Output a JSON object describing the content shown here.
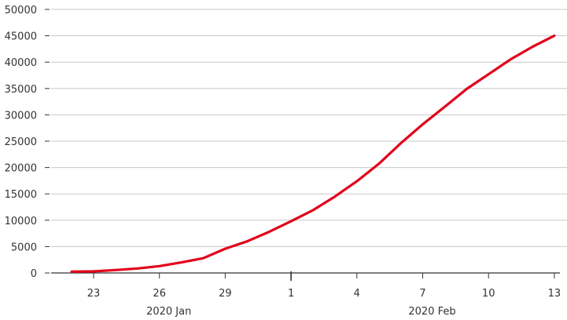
{
  "colors": {
    "line": "#e2001a",
    "grid": "#c8c8c8",
    "axis": "#333333",
    "text": "#333333"
  },
  "chart_data": {
    "type": "line",
    "title": "",
    "xlabel": "",
    "ylabel": "",
    "grid": true,
    "legend": "none",
    "ylim": [
      0,
      50000
    ],
    "xlim": [
      "2020-01-21",
      "2020-02-14"
    ],
    "y_ticks": [
      "0",
      "5000",
      "10000",
      "15000",
      "20000",
      "25000",
      "30000",
      "35000",
      "40000",
      "45000",
      "50000"
    ],
    "x_ticks": [
      {
        "date": "2020-01-23",
        "label": "23"
      },
      {
        "date": "2020-01-26",
        "label": "26"
      },
      {
        "date": "2020-01-29",
        "label": "29"
      },
      {
        "date": "2020-02-01",
        "label": "1"
      },
      {
        "date": "2020-02-04",
        "label": "4"
      },
      {
        "date": "2020-02-07",
        "label": "7"
      },
      {
        "date": "2020-02-10",
        "label": "10"
      },
      {
        "date": "2020-02-13",
        "label": "13"
      }
    ],
    "month_labels": [
      {
        "date": "2020-01-26",
        "label": "2020 Jan"
      },
      {
        "date": "2020-02-07",
        "label": "2020 Feb"
      }
    ],
    "series": [
      {
        "points": [
          {
            "x": "2020-01-22",
            "y": 250
          },
          {
            "x": "2020-01-23",
            "y": 300
          },
          {
            "x": "2020-01-24",
            "y": 550
          },
          {
            "x": "2020-01-25",
            "y": 850
          },
          {
            "x": "2020-01-26",
            "y": 1300
          },
          {
            "x": "2020-01-27",
            "y": 2000
          },
          {
            "x": "2020-01-28",
            "y": 2800
          },
          {
            "x": "2020-01-29",
            "y": 4600
          },
          {
            "x": "2020-01-30",
            "y": 6000
          },
          {
            "x": "2020-01-31",
            "y": 7800
          },
          {
            "x": "2020-02-01",
            "y": 9800
          },
          {
            "x": "2020-02-02",
            "y": 11900
          },
          {
            "x": "2020-02-03",
            "y": 14500
          },
          {
            "x": "2020-02-04",
            "y": 17400
          },
          {
            "x": "2020-02-05",
            "y": 20700
          },
          {
            "x": "2020-02-06",
            "y": 24600
          },
          {
            "x": "2020-02-07",
            "y": 28200
          },
          {
            "x": "2020-02-08",
            "y": 31500
          },
          {
            "x": "2020-02-09",
            "y": 34900
          },
          {
            "x": "2020-02-10",
            "y": 37700
          },
          {
            "x": "2020-02-11",
            "y": 40500
          },
          {
            "x": "2020-02-12",
            "y": 42900
          },
          {
            "x": "2020-02-13",
            "y": 45000
          }
        ]
      }
    ]
  }
}
